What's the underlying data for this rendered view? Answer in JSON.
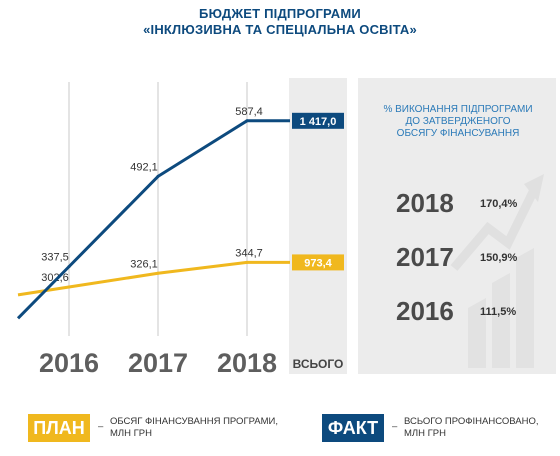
{
  "header": {
    "line1": "БЮДЖЕТ ПІДПРОГРАМИ",
    "line2": "«ІНКЛЮЗИВНА ТА СПЕЦІАЛЬНА ОСВІТА»"
  },
  "colors": {
    "plan": "#f0b81e",
    "fact": "#0d4a7e",
    "grid": "#c8c8c8",
    "panel": "#ececec"
  },
  "chart_data": {
    "type": "line",
    "categories": [
      "2016",
      "2017",
      "2018"
    ],
    "series": [
      {
        "name": "ПЛАН",
        "values": [
          302.6,
          326.1,
          344.7
        ],
        "value_labels": [
          "302,6",
          "326,1",
          "344,7"
        ],
        "total": "973,4",
        "color": "#f0b81e"
      },
      {
        "name": "ФАКТ",
        "values": [
          337.5,
          492.1,
          587.4
        ],
        "value_labels": [
          "337,5",
          "492,1",
          "587,4"
        ],
        "total": "1 417,0",
        "color": "#0d4a7e"
      }
    ],
    "total_label": "ВСЬОГО"
  },
  "panel": {
    "heading": [
      "% ВИКОНАННЯ ПІДПРОГРАМИ",
      "ДО ЗАТВЕРДЖЕНОГО",
      "ОБСЯГУ ФІНАНСУВАННЯ"
    ],
    "rows": [
      {
        "year": "2018",
        "value": "170,4%"
      },
      {
        "year": "2017",
        "value": "150,9%"
      },
      {
        "year": "2016",
        "value": "111,5%"
      }
    ]
  },
  "legend": {
    "plan": {
      "badge": "ПЛАН",
      "dash": "–",
      "line1": "ОБСЯГ ФІНАНСУВАННЯ ПРОГРАМИ,",
      "line2": "МЛН ГРН"
    },
    "fact": {
      "badge": "ФАКТ",
      "dash": "–",
      "line1": "ВСЬОГО ПРОФІНАНСОВАНО,",
      "line2": "МЛН ГРН"
    }
  }
}
